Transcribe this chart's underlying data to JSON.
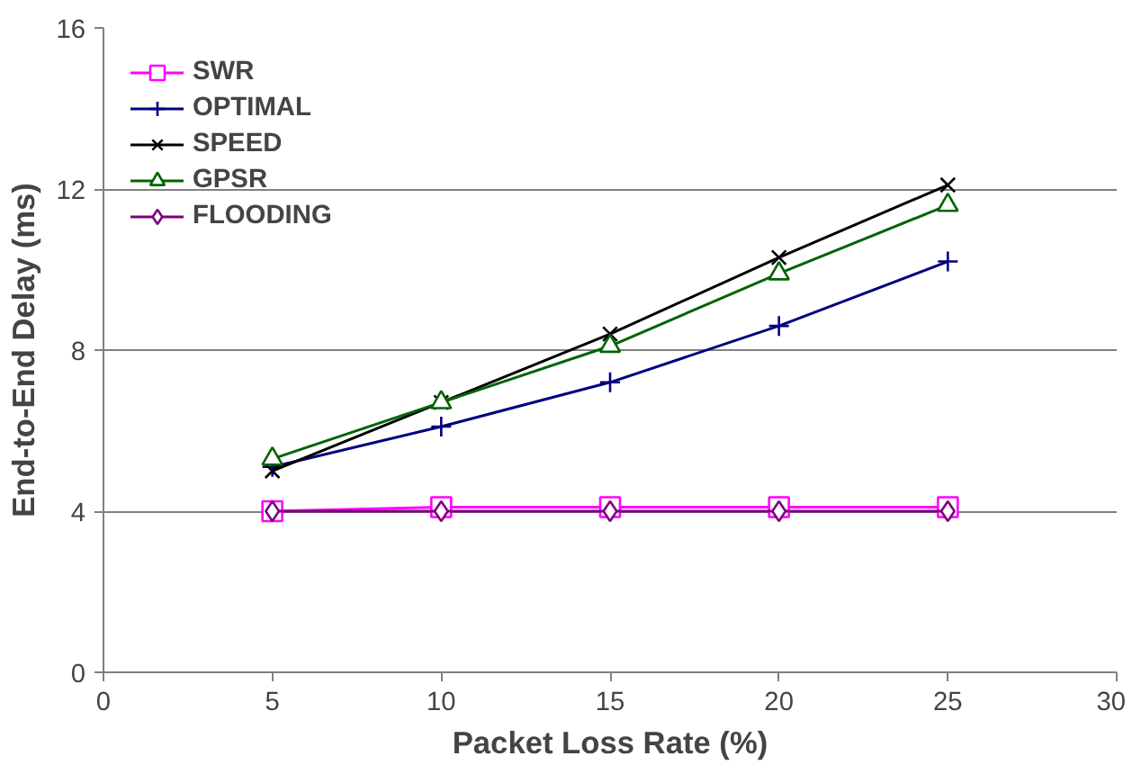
{
  "chart_data": {
    "type": "line",
    "xlabel": "Packet Loss Rate (%)",
    "ylabel": "End-to-End Delay (ms)",
    "x": [
      5,
      10,
      15,
      20,
      25
    ],
    "xlim": [
      0,
      30
    ],
    "xticks": [
      0,
      5,
      10,
      15,
      20,
      25,
      30
    ],
    "ylim": [
      0,
      16
    ],
    "yticks": [
      0,
      4,
      8,
      12,
      16
    ],
    "grid": "y",
    "legend": "top left",
    "series": [
      {
        "name": "SWR",
        "color": "#ff00ff",
        "marker": "square",
        "values": [
          4.0,
          4.1,
          4.1,
          4.1,
          4.1
        ]
      },
      {
        "name": "OPTIMAL",
        "color": "#000080",
        "marker": "cross",
        "values": [
          5.1,
          6.1,
          7.2,
          8.6,
          10.2
        ]
      },
      {
        "name": "SPEED",
        "color": "#000000",
        "marker": "x",
        "values": [
          5.0,
          6.7,
          8.4,
          10.3,
          12.1
        ]
      },
      {
        "name": "GPSR",
        "color": "#006400",
        "marker": "triangle",
        "values": [
          5.3,
          6.7,
          8.1,
          9.9,
          11.6
        ]
      },
      {
        "name": "FLOODING",
        "color": "#800080",
        "marker": "diamond",
        "values": [
          4.0,
          4.0,
          4.0,
          4.0,
          4.0
        ]
      }
    ]
  }
}
